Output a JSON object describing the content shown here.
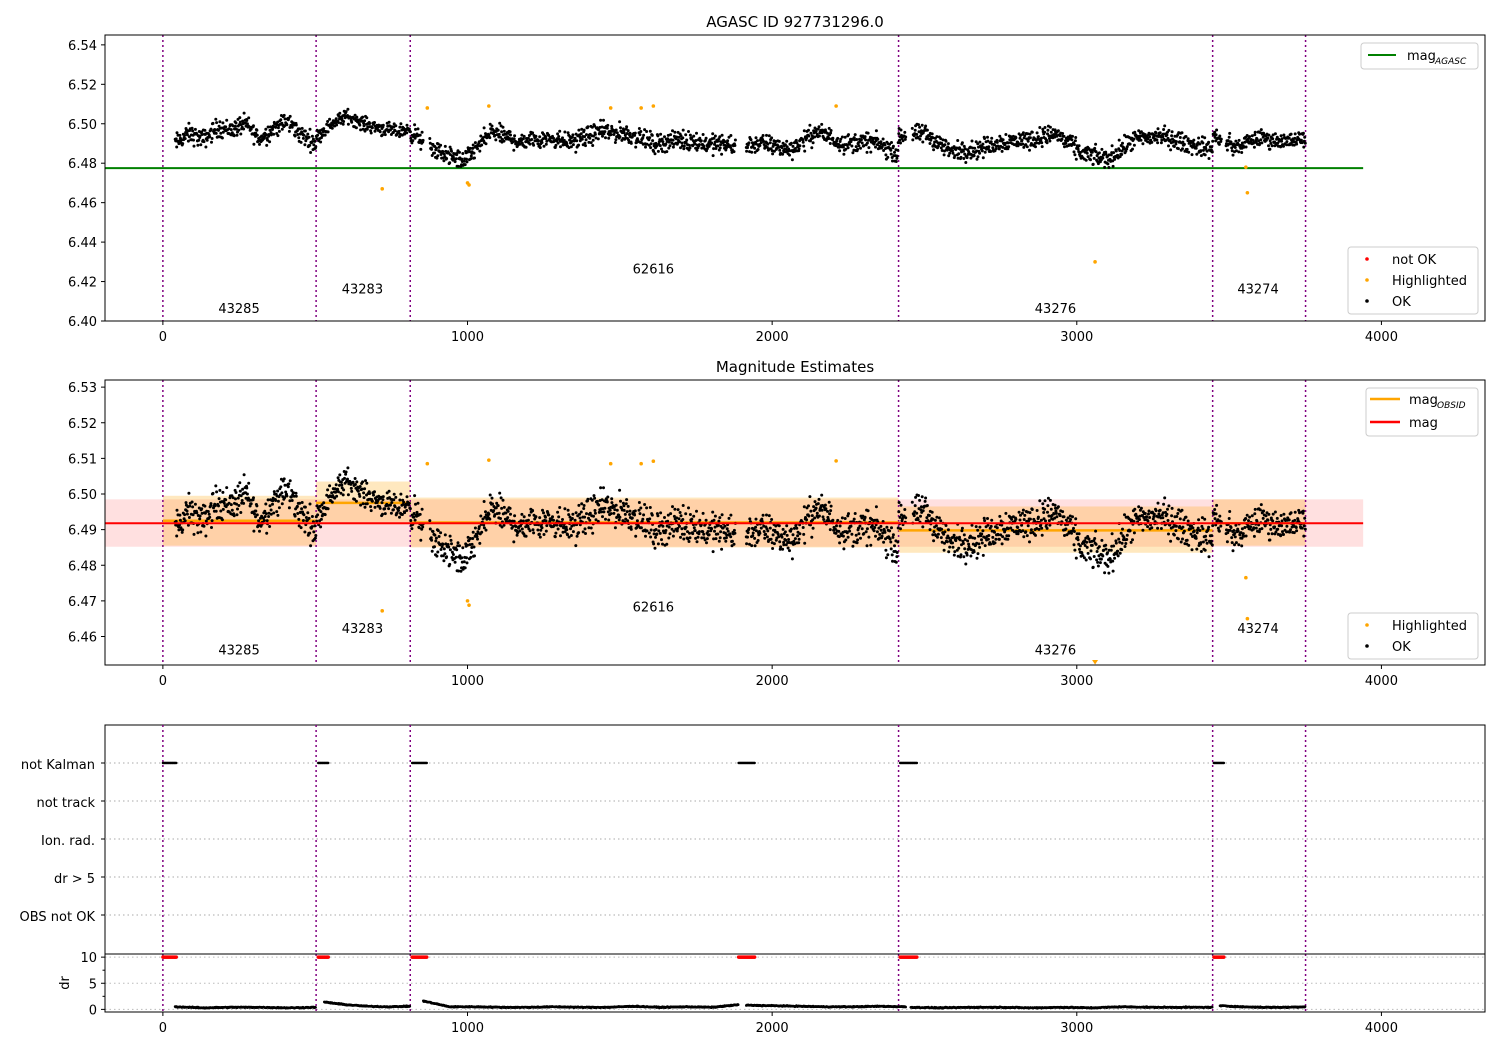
{
  "figure": {
    "background": "#ffffff"
  },
  "chart_data": [
    {
      "type": "scatter",
      "title": "AGASC ID 927731296.0",
      "xlabel": "",
      "ylabel": "",
      "xlim": [
        -190,
        4340
      ],
      "ylim": [
        6.4,
        6.545
      ],
      "x_ticks": [
        0,
        1000,
        2000,
        3000,
        4000
      ],
      "y_ticks": [
        6.4,
        6.42,
        6.44,
        6.46,
        6.48,
        6.5,
        6.52,
        6.54
      ],
      "y_tick_labels": [
        "6.40",
        "6.42",
        "6.44",
        "6.46",
        "6.48",
        "6.50",
        "6.52",
        "6.54"
      ],
      "obsid_boundaries": [
        0,
        503,
        812,
        2415,
        3446,
        3751
      ],
      "obsid_labels": [
        {
          "text": "43285",
          "x": 250,
          "y": 6.404
        },
        {
          "text": "43283",
          "x": 655,
          "y": 6.414
        },
        {
          "text": "62616",
          "x": 1610,
          "y": 6.424
        },
        {
          "text": "43276",
          "x": 2930,
          "y": 6.404
        },
        {
          "text": "43274",
          "x": 3595,
          "y": 6.414
        }
      ],
      "reference_lines": [
        {
          "name": "mag_AGASC",
          "y": 6.4775,
          "x_range": [
            -190,
            3940
          ],
          "color": "#008000"
        }
      ],
      "gaps": [
        [
          855,
          875
        ],
        [
          1880,
          1915
        ],
        [
          2440,
          2460
        ],
        [
          3475,
          3490
        ]
      ],
      "ok_series": {
        "name": "OK",
        "color": "#000000",
        "segments": [
          {
            "x": [
              40,
              503
            ],
            "base": [
              6.49,
              6.495,
              6.492,
              6.498,
              6.497,
              6.5,
              6.492,
              6.498,
              6.501,
              6.494,
              6.49
            ],
            "noise": 0.0075
          },
          {
            "x": [
              503,
              812
            ],
            "base": [
              6.493,
              6.5,
              6.504,
              6.5,
              6.498,
              6.496,
              6.497
            ],
            "noise": 0.0055
          },
          {
            "x": [
              812,
              2415
            ],
            "base": [
              6.496,
              6.486,
              6.481,
              6.496,
              6.491,
              6.493,
              6.491,
              6.496,
              6.495,
              6.49,
              6.492,
              6.49,
              6.489,
              6.49,
              6.487,
              6.496,
              6.49,
              6.491,
              6.485
            ],
            "noise": 0.0075
          },
          {
            "x": [
              2415,
              3446
            ],
            "base": [
              6.493,
              6.495,
              6.486,
              6.487,
              6.491,
              6.492,
              6.495,
              6.485,
              6.482,
              6.492,
              6.494,
              6.49,
              6.487
            ],
            "noise": 0.0075
          },
          {
            "x": [
              3446,
              3751
            ],
            "base": [
              6.494,
              6.488,
              6.493,
              6.491,
              6.492
            ],
            "noise": 0.0065
          }
        ]
      },
      "highlighted_points": {
        "name": "Highlighted",
        "color": "#ffa500",
        "x": [
          720,
          868,
          1000,
          1005,
          1070,
          1470,
          1570,
          1610,
          2210,
          3060,
          3555,
          3560
        ],
        "y": [
          6.467,
          6.508,
          6.47,
          6.469,
          6.509,
          6.508,
          6.508,
          6.509,
          6.509,
          6.43,
          6.478,
          6.465
        ]
      },
      "legend_lines": {
        "entries": [
          {
            "label": "mag",
            "sub": "AGASC",
            "color": "#008000"
          }
        ],
        "location": "top-right"
      },
      "legend_points": {
        "entries": [
          {
            "label": "not OK",
            "color": "#ff0000"
          },
          {
            "label": "Highlighted",
            "color": "#ffa500"
          },
          {
            "label": "OK",
            "color": "#000000"
          }
        ],
        "location": "bottom-right"
      }
    },
    {
      "type": "scatter",
      "title": "Magnitude Estimates",
      "xlabel": "",
      "ylabel": "",
      "xlim": [
        -190,
        4340
      ],
      "ylim": [
        6.452,
        6.532
      ],
      "x_ticks": [
        0,
        1000,
        2000,
        3000,
        4000
      ],
      "y_ticks": [
        6.46,
        6.47,
        6.48,
        6.49,
        6.5,
        6.51,
        6.52,
        6.53
      ],
      "y_tick_labels": [
        "6.46",
        "6.47",
        "6.48",
        "6.49",
        "6.50",
        "6.51",
        "6.52",
        "6.53"
      ],
      "obsid_boundaries": [
        0,
        503,
        812,
        2415,
        3446,
        3751
      ],
      "obsid_labels": [
        {
          "text": "43285",
          "x": 250,
          "y": 6.455
        },
        {
          "text": "43283",
          "x": 655,
          "y": 6.461
        },
        {
          "text": "62616",
          "x": 1610,
          "y": 6.467
        },
        {
          "text": "43276",
          "x": 2930,
          "y": 6.455
        },
        {
          "text": "43274",
          "x": 3595,
          "y": 6.461
        }
      ],
      "mag": {
        "name": "mag",
        "value": 6.4918,
        "band": [
          6.4852,
          6.4985
        ],
        "x_range": [
          -190,
          3940
        ],
        "color": "#ff0000"
      },
      "mag_obsid": [
        {
          "obsid": "43285",
          "x": [
            0,
            503
          ],
          "value": 6.4925,
          "band": [
            6.4855,
            6.4995
          ]
        },
        {
          "obsid": "43283",
          "x": [
            503,
            812
          ],
          "value": 6.4975,
          "band": [
            6.4915,
            6.5035
          ]
        },
        {
          "obsid": "62616",
          "x": [
            812,
            2415
          ],
          "value": 6.492,
          "band": [
            6.485,
            6.499
          ]
        },
        {
          "obsid": "43276",
          "x": [
            2415,
            3446
          ],
          "value": 6.4898,
          "band": [
            6.4835,
            6.4965
          ]
        },
        {
          "obsid": "43274",
          "x": [
            3446,
            3751
          ],
          "value": 6.4918,
          "band": [
            6.4855,
            6.4985
          ]
        }
      ],
      "highlighted_points": {
        "name": "Highlighted",
        "color": "#ffa500",
        "x": [
          720,
          868,
          1000,
          1005,
          1070,
          1470,
          1570,
          1610,
          2210,
          3555,
          3560
        ],
        "y": [
          6.4672,
          6.5085,
          6.47,
          6.4688,
          6.5095,
          6.5085,
          6.5085,
          6.5092,
          6.5093,
          6.4765,
          6.465
        ]
      },
      "offscale_marker": {
        "x": 3060,
        "color": "#ffa500"
      },
      "legend_lines": {
        "entries": [
          {
            "label": "mag",
            "sub": "OBSID",
            "color": "#ffa500"
          },
          {
            "label": "mag",
            "sub": "",
            "color": "#ff0000"
          }
        ],
        "location": "top-right"
      },
      "legend_points": {
        "entries": [
          {
            "label": "Highlighted",
            "color": "#ffa500"
          },
          {
            "label": "OK",
            "color": "#000000"
          }
        ],
        "location": "bottom-right"
      }
    },
    {
      "type": "scatter",
      "title": "",
      "xlabel": "",
      "ylabel": "",
      "xlim": [
        -190,
        4340
      ],
      "flag_labels": [
        "not Kalman",
        "not track",
        "Ion. rad.",
        "dr > 5",
        "OBS not OK"
      ],
      "flag_segments": {
        "not Kalman": [
          [
            0,
            45
          ],
          [
            510,
            545
          ],
          [
            818,
            868
          ],
          [
            1890,
            1945
          ],
          [
            2420,
            2475
          ],
          [
            3450,
            3485
          ]
        ]
      },
      "grid": "dotted"
    },
    {
      "type": "scatter",
      "title": "",
      "xlabel": "",
      "ylabel": "dr",
      "xlim": [
        -190,
        4340
      ],
      "ylim": [
        -0.5,
        10.6
      ],
      "x_ticks": [
        0,
        1000,
        2000,
        3000,
        4000
      ],
      "y_ticks": [
        0,
        5,
        10
      ],
      "clipped_value": 10,
      "clipped_segments": [
        [
          0,
          45
        ],
        [
          510,
          545
        ],
        [
          818,
          868
        ],
        [
          1890,
          1945
        ],
        [
          2420,
          2475
        ],
        [
          3450,
          3485
        ]
      ],
      "dr_segments": [
        {
          "x": [
            40,
            503
          ],
          "base": [
            0.5,
            0.3,
            0.4,
            0.4,
            0.3,
            0.4
          ]
        },
        {
          "x": [
            530,
            812
          ],
          "base": [
            1.4,
            0.9,
            0.6,
            0.5,
            0.6
          ]
        },
        {
          "x": [
            855,
            1890
          ],
          "base": [
            1.6,
            0.5,
            0.5,
            0.4,
            0.4,
            0.5,
            0.4,
            0.4,
            0.6,
            0.4,
            0.5,
            0.4,
            0.9
          ]
        },
        {
          "x": [
            1915,
            2440
          ],
          "base": [
            0.8,
            0.7,
            0.6,
            0.5,
            0.5,
            0.6,
            0.5
          ]
        },
        {
          "x": [
            2455,
            3446
          ],
          "base": [
            0.4,
            0.3,
            0.4,
            0.4,
            0.3,
            0.4,
            0.3,
            0.5,
            0.4,
            0.4,
            0.4
          ]
        },
        {
          "x": [
            3470,
            3751
          ],
          "base": [
            0.7,
            0.5,
            0.4,
            0.4,
            0.5
          ]
        }
      ],
      "grid": "dotted"
    }
  ]
}
